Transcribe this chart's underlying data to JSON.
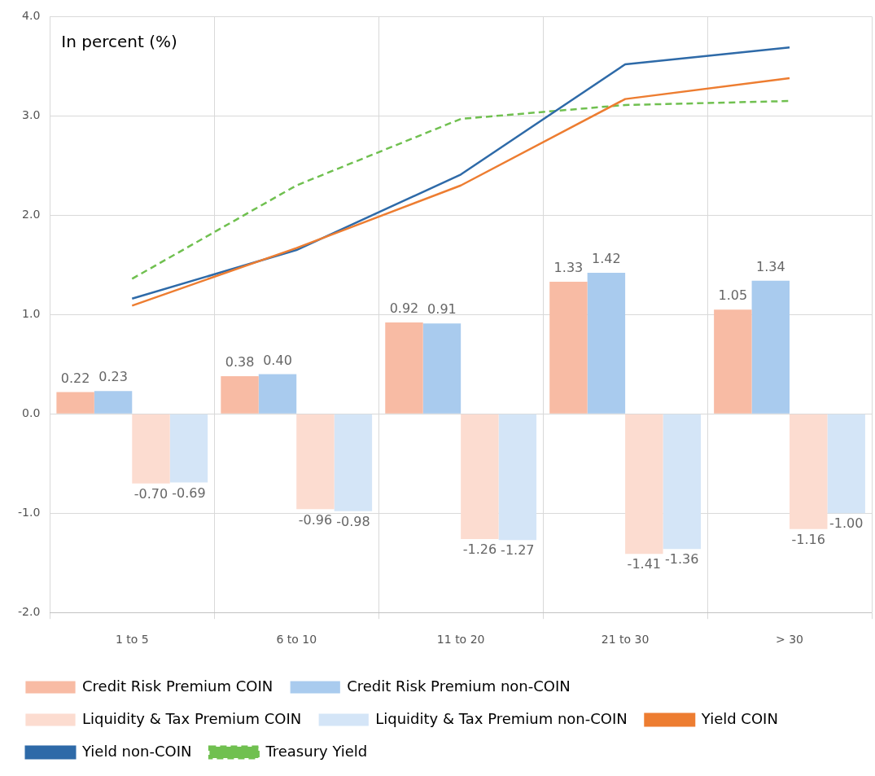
{
  "chart_data": {
    "type": "bar",
    "categories": [
      "1 to 5",
      "6 to 10",
      "11 to 20",
      "21 to 30",
      "> 30"
    ],
    "series": [
      {
        "name": "Credit Risk Premium COIN",
        "color": "#f8bba4",
        "values": [
          0.22,
          0.38,
          0.92,
          1.33,
          1.05
        ],
        "value_labels": [
          "0.22",
          "0.38",
          "0.92",
          "1.33",
          "1.05"
        ]
      },
      {
        "name": "Credit Risk Premium non-COIN",
        "color": "#a9cbee",
        "values": [
          0.23,
          0.4,
          0.91,
          1.42,
          1.34
        ],
        "value_labels": [
          "0.23",
          "0.40",
          "0.91",
          "1.42",
          "1.34"
        ]
      },
      {
        "name": "Liquidity & Tax Premium COIN",
        "color": "#fcdcd0",
        "values": [
          -0.7,
          -0.96,
          -1.26,
          -1.41,
          -1.16
        ],
        "value_labels": [
          "-0.70",
          "-0.96",
          "-1.26",
          "-1.41",
          "-1.16"
        ]
      },
      {
        "name": "Liquidity & Tax Premium non-COIN",
        "color": "#d4e5f7",
        "values": [
          -0.69,
          -0.98,
          -1.27,
          -1.36,
          -1.0
        ],
        "value_labels": [
          "-0.69",
          "-0.98",
          "-1.27",
          "-1.36",
          "-1.00"
        ]
      },
      {
        "name": "Yield COIN",
        "type": "line",
        "color": "#ed7d31",
        "values": [
          1.09,
          1.67,
          2.3,
          3.17,
          3.38
        ]
      },
      {
        "name": "Yield non-COIN",
        "type": "line",
        "color": "#2e6aa8",
        "values": [
          1.16,
          1.65,
          2.41,
          3.52,
          3.69
        ]
      },
      {
        "name": "Treasury Yield",
        "type": "line",
        "color": "#70c050",
        "line_style": "dashed",
        "values": [
          1.36,
          2.3,
          2.97,
          3.11,
          3.15
        ]
      }
    ],
    "ylim": [
      -2,
      4
    ],
    "yticks": [
      {
        "value": -2,
        "label": "-2.0"
      },
      {
        "value": -1,
        "label": "-1.0"
      },
      {
        "value": 0,
        "label": "0.0"
      },
      {
        "value": 1,
        "label": "1.0"
      },
      {
        "value": 2,
        "label": "2.0"
      },
      {
        "value": 3,
        "label": "3.0"
      },
      {
        "value": 4,
        "label": "4.0"
      }
    ],
    "annotations": [
      "In percent (%)"
    ],
    "grid": true,
    "legend": "bottom",
    "marker": "none"
  }
}
